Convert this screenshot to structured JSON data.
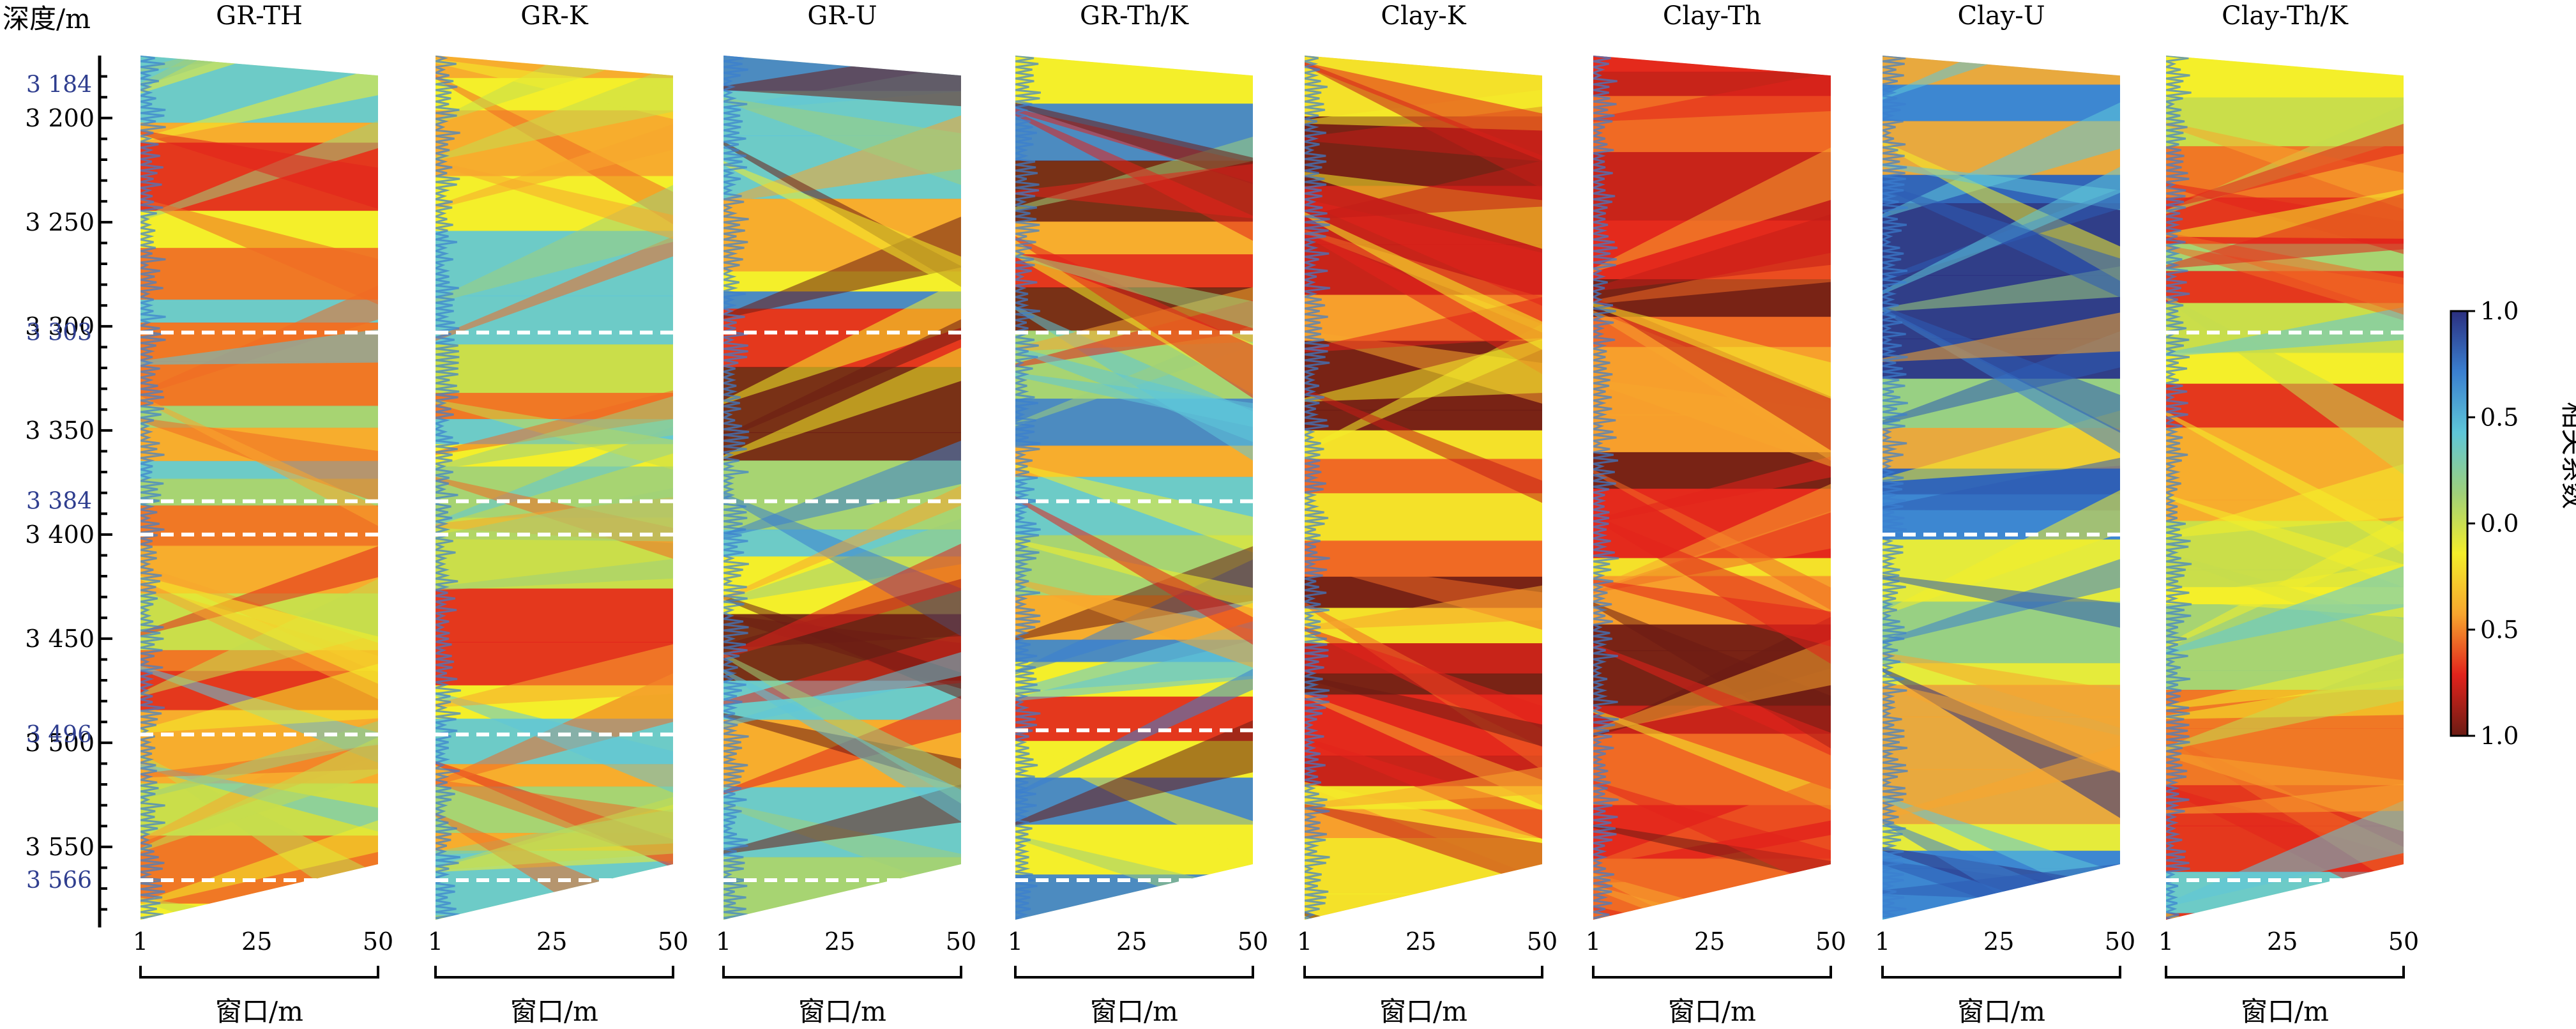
{
  "chart_data": {
    "type": "heatmap",
    "depth_axis": {
      "label": "深度/m",
      "range": [
        3170,
        3585
      ],
      "major_ticks": [
        3200,
        3250,
        3300,
        3350,
        3400,
        3450,
        3500,
        3550
      ],
      "tick_labels": [
        "3 200",
        "3 250",
        "3 300",
        "3 350",
        "3 400",
        "3 450",
        "3 500",
        "3 550"
      ],
      "marked_depths": [
        3184,
        3303,
        3384,
        3496,
        3566
      ],
      "marked_labels": [
        "3 184",
        "3 303",
        "3 384",
        "3 496",
        "3 566"
      ]
    },
    "window_axis": {
      "label": "窗口/m",
      "range": [
        1,
        50
      ],
      "tick_values": [
        1,
        25,
        50
      ],
      "tick_labels": [
        "1",
        "25",
        "50"
      ]
    },
    "colorbar": {
      "title": "相关系数",
      "tick_labels": [
        "1.0",
        "0.5",
        "0.0",
        "0.5",
        "1.0"
      ],
      "colors_top_to_bottom": [
        "#2b2f7f",
        "#3a7fd0",
        "#5ec6d8",
        "#9fd07a",
        "#f4ee2a",
        "#f7a52e",
        "#e2231c",
        "#6b1c14"
      ]
    },
    "panels": [
      {
        "title": "GR-TH",
        "dashed_depths": [
          3303,
          3384,
          3400,
          3496,
          3566
        ],
        "palette": "warm"
      },
      {
        "title": "GR-K",
        "dashed_depths": [
          3303,
          3384,
          3400,
          3496,
          3566
        ],
        "palette": "warm"
      },
      {
        "title": "GR-U",
        "dashed_depths": [
          3303,
          3384,
          3566
        ],
        "palette": "mixed"
      },
      {
        "title": "GR-Th/K",
        "dashed_depths": [
          3303,
          3384,
          3494,
          3566
        ],
        "palette": "mixed"
      },
      {
        "title": "Clay-K",
        "dashed_depths": [],
        "palette": "hot"
      },
      {
        "title": "Clay-Th",
        "dashed_depths": [],
        "palette": "hot"
      },
      {
        "title": "Clay-U",
        "dashed_depths": [
          3400
        ],
        "palette": "cool"
      },
      {
        "title": "Clay-Th/K",
        "dashed_depths": [
          3303,
          3566
        ],
        "palette": "warm"
      }
    ]
  }
}
